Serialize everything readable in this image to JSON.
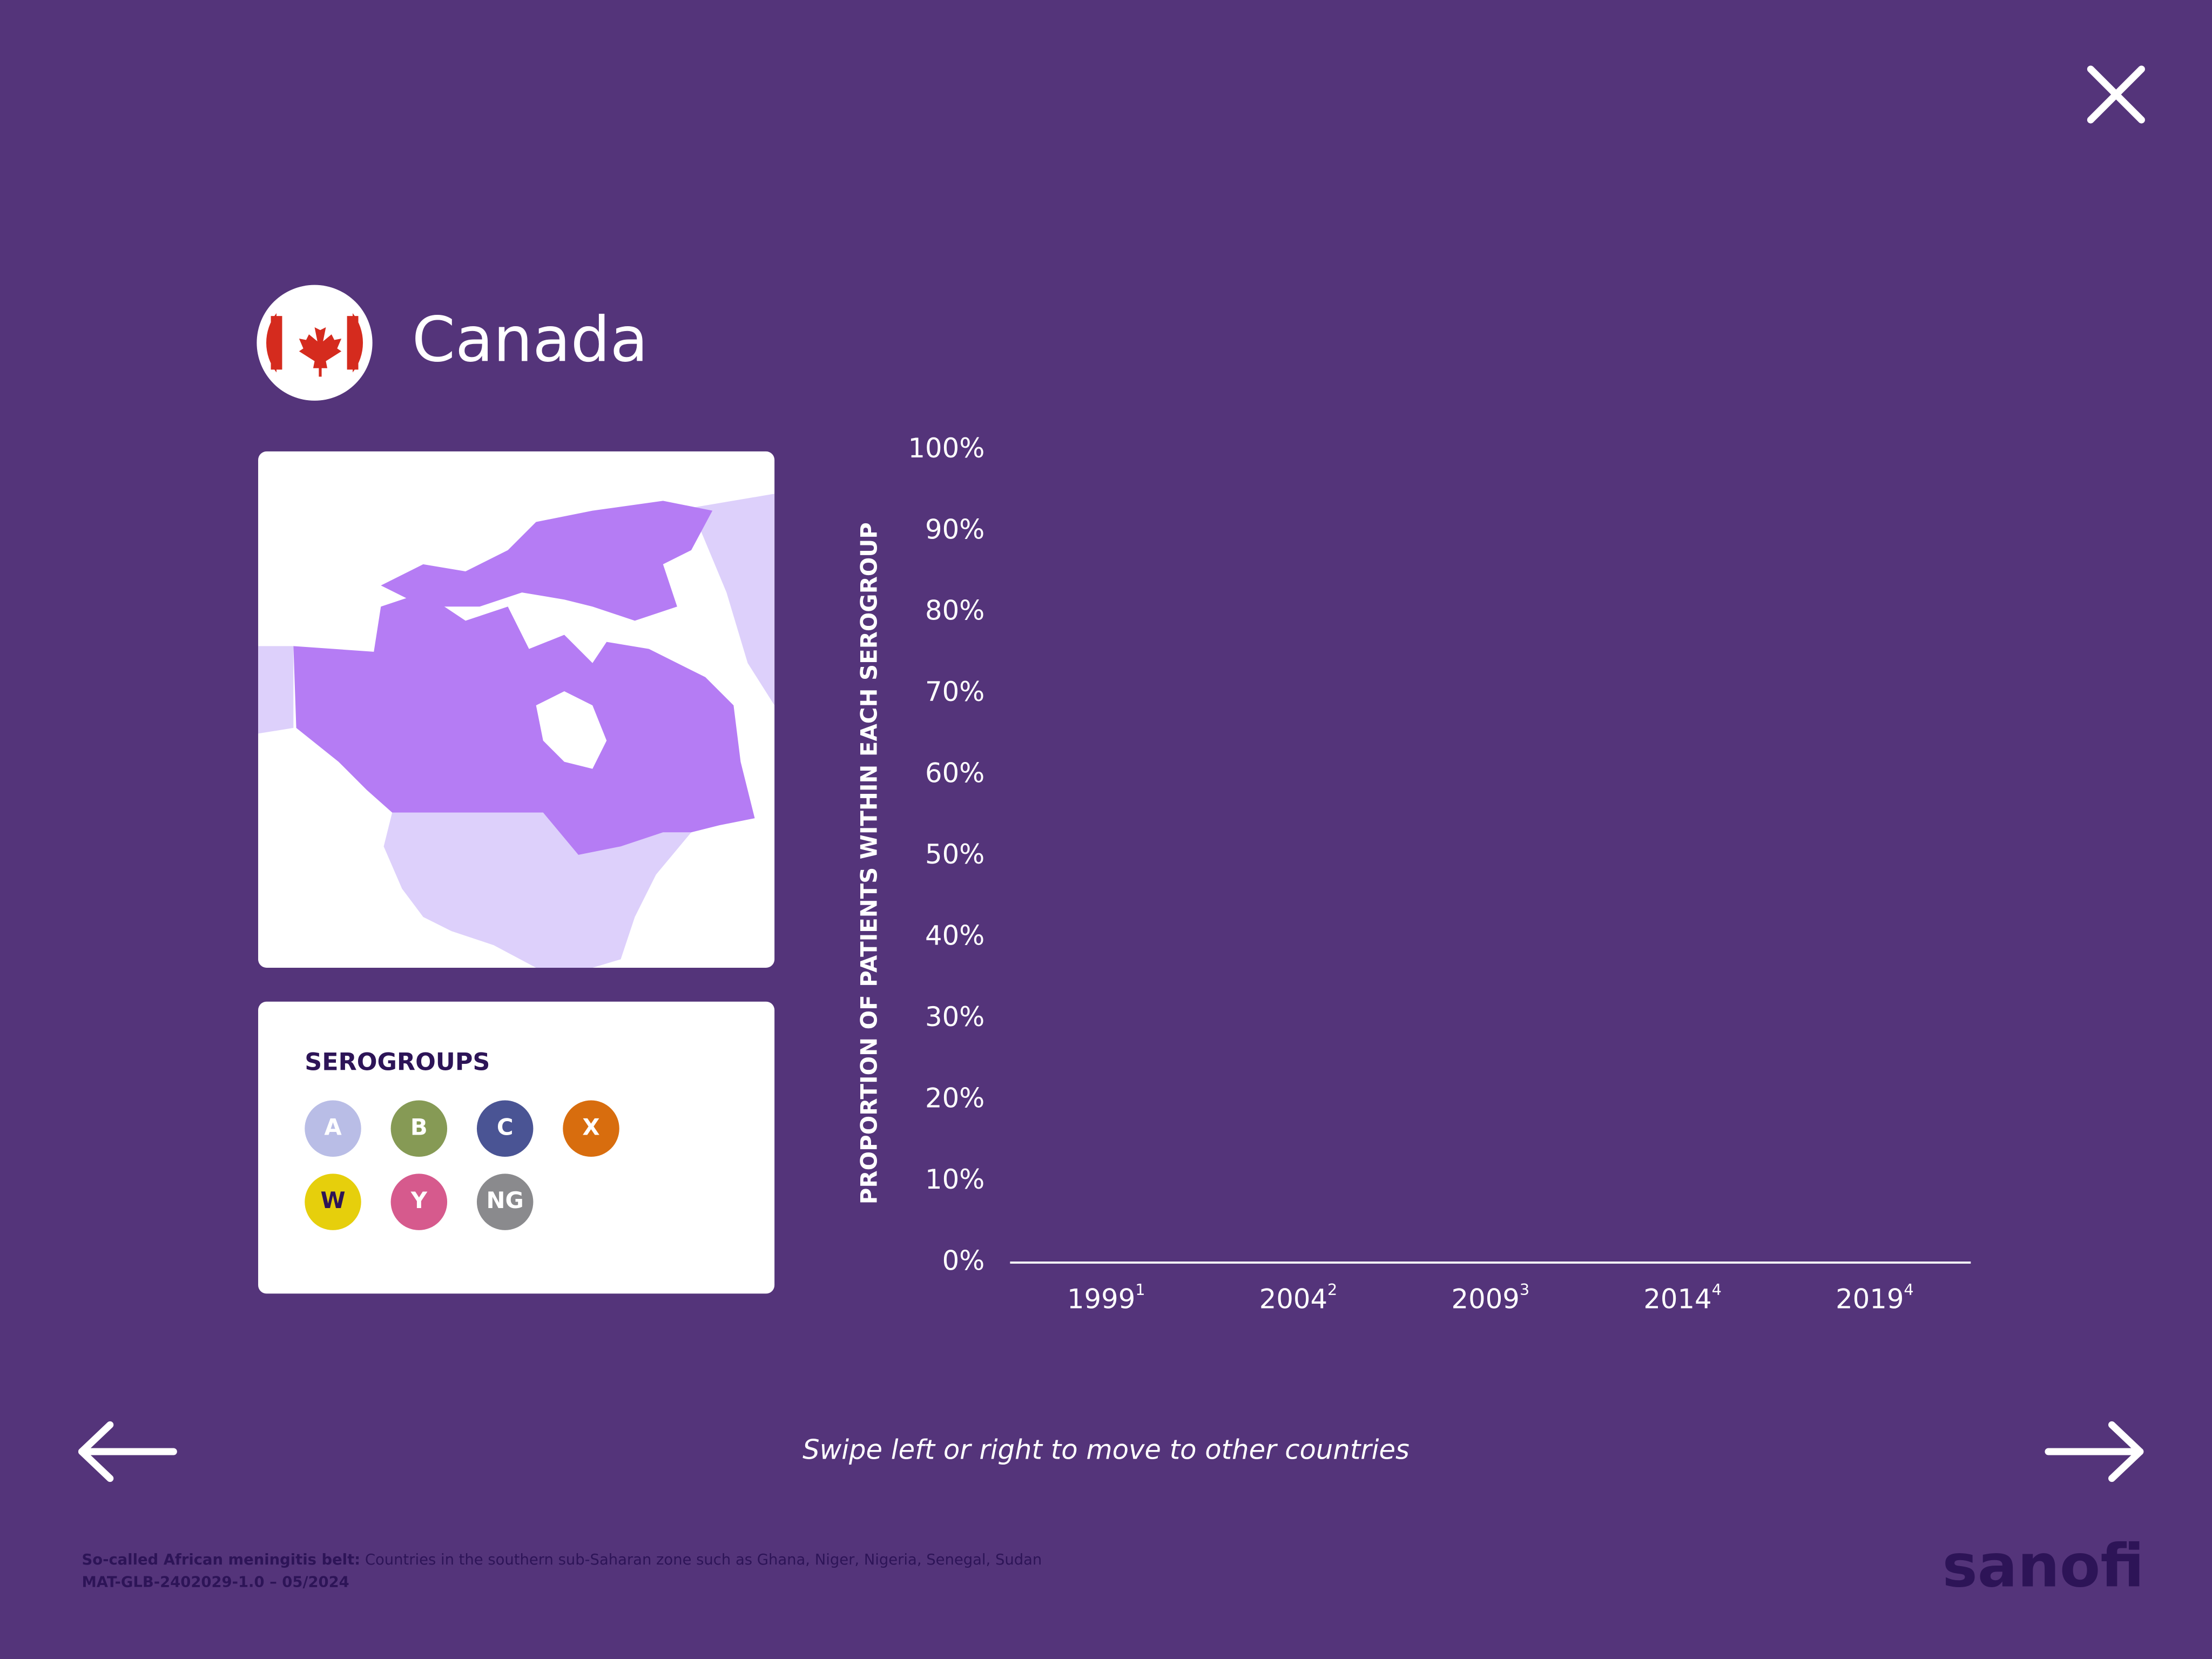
{
  "header": {
    "title": "Canada"
  },
  "legend": {
    "title": "SEROGROUPS",
    "items": [
      {
        "name": "A",
        "color": "#b9bde6"
      },
      {
        "name": "B",
        "color": "#869a55"
      },
      {
        "name": "C",
        "color": "#4a5494"
      },
      {
        "name": "X",
        "color": "#d86d0e"
      },
      {
        "name": "W",
        "color": "#e6cf0c"
      },
      {
        "name": "Y",
        "color": "#d65a8d"
      },
      {
        "name": "NG",
        "color": "#8a8a8d"
      }
    ]
  },
  "chart_data": {
    "type": "bar",
    "y_label": "PROPORTION OF  PATIENTS WITHIN EACH  SEROGROUP",
    "categories": [
      "1999",
      "2004",
      "2009",
      "2014",
      "2019"
    ],
    "category_notes": [
      "1",
      "2",
      "3",
      "4",
      "4"
    ],
    "ylim": [
      0,
      100
    ],
    "yticks": [
      {
        "value": 0,
        "label": "0%"
      },
      {
        "value": 10,
        "label": "10%"
      },
      {
        "value": 20,
        "label": "20%"
      },
      {
        "value": 30,
        "label": "30%"
      },
      {
        "value": 40,
        "label": "40%"
      },
      {
        "value": 50,
        "label": "50%"
      },
      {
        "value": 60,
        "label": "60%"
      },
      {
        "value": 70,
        "label": "70%"
      },
      {
        "value": 80,
        "label": "80%"
      },
      {
        "value": 90,
        "label": "90%"
      },
      {
        "value": 100,
        "label": "100%"
      }
    ]
  },
  "navigation": {
    "hint": "Swipe left or right to move to other countries"
  },
  "footer": {
    "note_term": "So-called African meningitis belt:",
    "note_text": " Countries in the southern sub-Saharan zone such as Ghana, Niger, Nigeria, Senegal, Sudan",
    "code": "MAT-GLB-2402029-1.0 – 05/2024",
    "brand": "sanofi"
  }
}
